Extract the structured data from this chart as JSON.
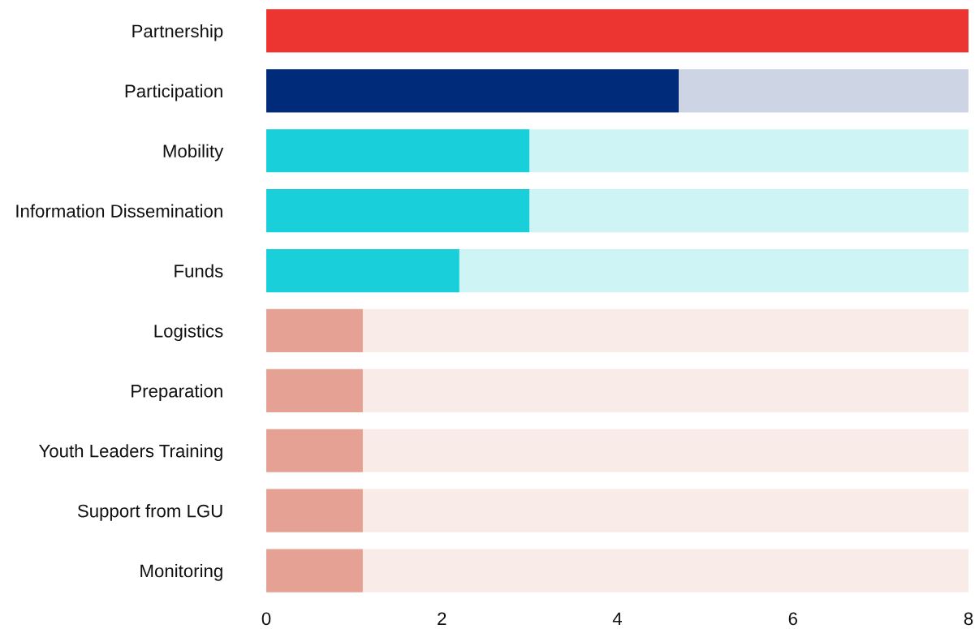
{
  "chart_data": {
    "type": "bar",
    "orientation": "horizontal",
    "stacked": true,
    "categories": [
      "Partnership",
      "Participation",
      "Mobility",
      "Information Dissemination",
      "Funds",
      "Logistics",
      "Preparation",
      "Youth Leaders Training",
      "Support from LGU",
      "Monitoring"
    ],
    "series": [
      {
        "colors": [
          "#ec3431",
          "#002b7a",
          "#19cfda",
          "#19cfda",
          "#19cfda",
          "#e5a194",
          "#e5a194",
          "#e5a194",
          "#e5a194",
          "#e5a194"
        ],
        "values": [
          8,
          4.7,
          3.0,
          3.0,
          2.2,
          1.1,
          1.1,
          1.1,
          1.1,
          1.1
        ]
      },
      {
        "colors": [
          "#f9ebe7",
          "#cdd4e4",
          "#cff4f5",
          "#cff4f5",
          "#cff4f5",
          "#f9ebe7",
          "#f9ebe7",
          "#f9ebe7",
          "#f9ebe7",
          "#f9ebe7"
        ],
        "values": [
          0,
          3.3,
          5.0,
          5.0,
          5.8,
          6.9,
          6.9,
          6.9,
          6.9,
          6.9
        ]
      }
    ],
    "xlim": [
      0,
      8
    ],
    "xticks": [
      0,
      2,
      4,
      6,
      8
    ],
    "grid": false,
    "legend": false
  }
}
